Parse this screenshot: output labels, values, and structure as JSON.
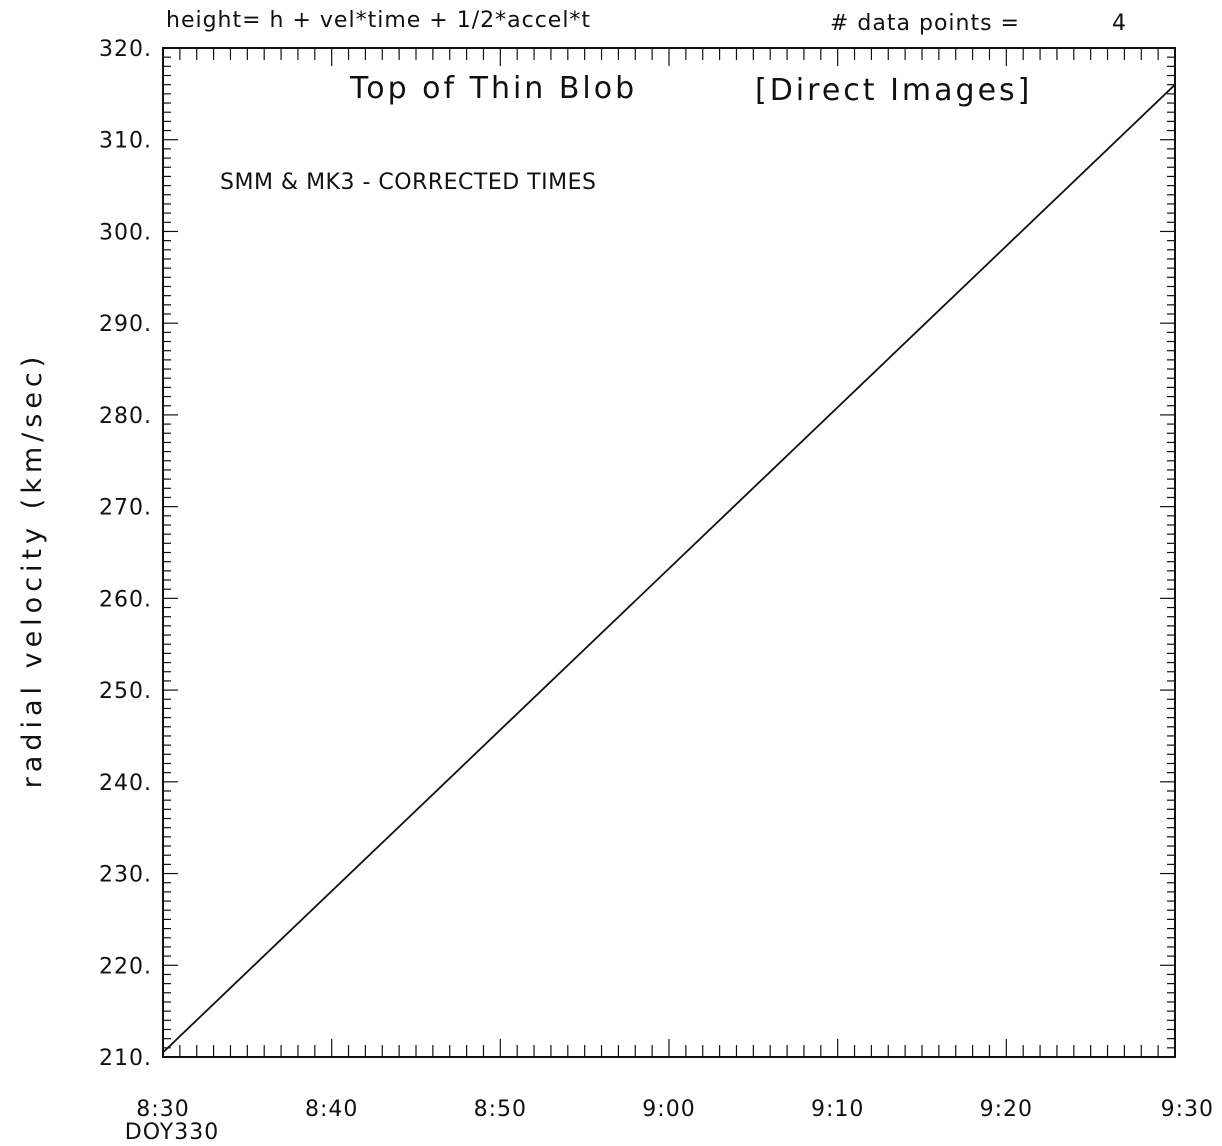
{
  "header": {
    "equation": "height= h + vel*time + 1/2*accel*t",
    "points_label": "# data points =",
    "points_value": "4"
  },
  "chart_data": {
    "type": "line",
    "title": "Top of Thin Blob",
    "subtitle": "[Direct Images]",
    "annotation": "SMM & MK3 - CORRECTED TIMES",
    "ylabel": "radial velocity (km/sec)",
    "xlabel": "",
    "x_sublabel": "DOY330",
    "ylim": [
      210,
      320
    ],
    "xlim": [
      "8:30",
      "9:30"
    ],
    "y_ticks": [
      "210.",
      "220.",
      "230.",
      "240.",
      "250.",
      "260.",
      "270.",
      "280.",
      "290.",
      "300.",
      "310.",
      "320."
    ],
    "x_ticks": [
      "8:30",
      "8:40",
      "8:50",
      "9:00",
      "9:10",
      "9:20",
      "9:30"
    ],
    "series": [
      {
        "x": [
          "8:30",
          "9:30"
        ],
        "y": [
          210.5,
          316
        ]
      }
    ],
    "grid": false,
    "color": "#111111"
  }
}
